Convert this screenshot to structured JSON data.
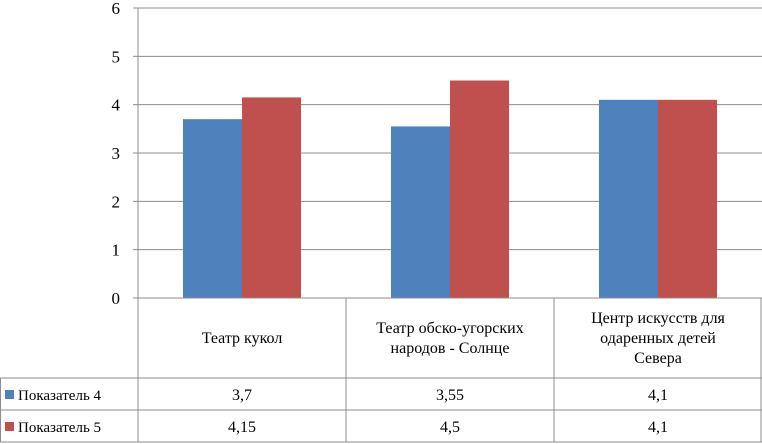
{
  "chart_data": {
    "type": "bar",
    "title": "",
    "xlabel": "",
    "ylabel": "",
    "categories": [
      [
        "Театр кукол"
      ],
      [
        "Театр обско-угорских",
        "народов - Солнце"
      ],
      [
        "Центр искусств для",
        "одаренных детей",
        "Севера"
      ]
    ],
    "series": [
      {
        "name": "Показатель 4",
        "values": [
          3.7,
          3.55,
          4.1
        ],
        "labels": [
          "3,7",
          "3,55",
          "4,1"
        ],
        "color": "#4f81bd"
      },
      {
        "name": "Показатель 5",
        "values": [
          4.15,
          4.5,
          4.1
        ],
        "labels": [
          "4,15",
          "4,5",
          "4,1"
        ],
        "color": "#c0504d"
      }
    ],
    "ylim": [
      0,
      6
    ],
    "yticks": [
      0,
      1,
      2,
      3,
      4,
      5,
      6
    ],
    "grid": true,
    "legend": "data-table"
  }
}
